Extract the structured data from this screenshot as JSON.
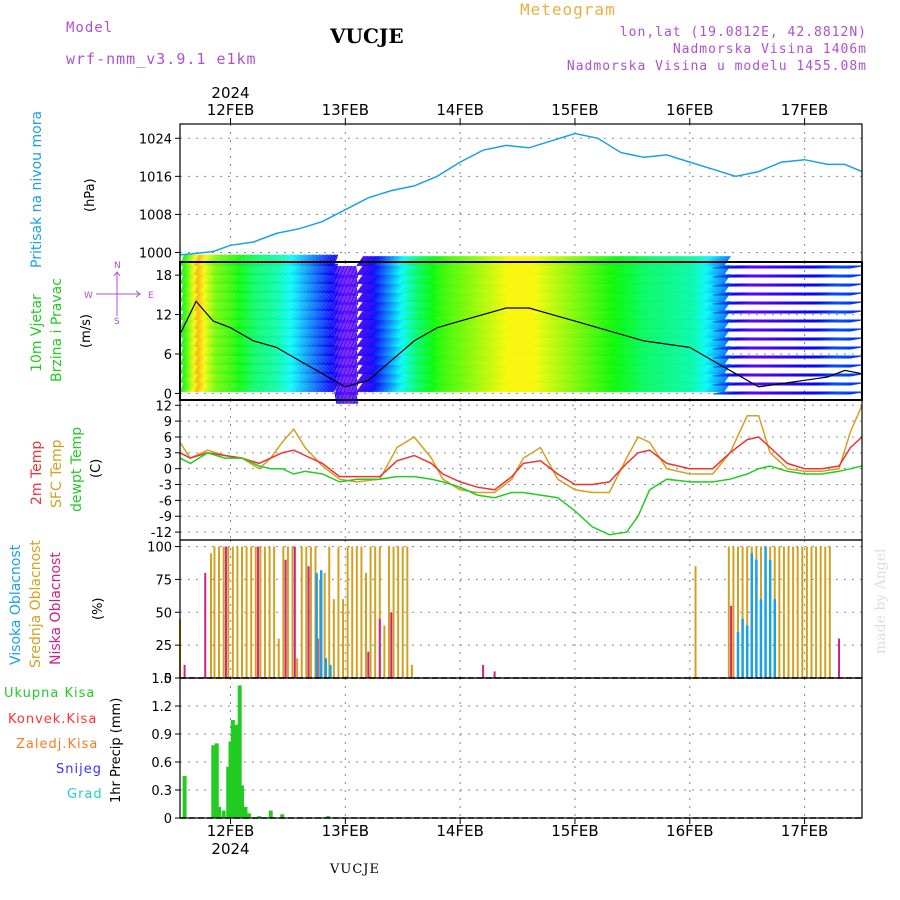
{
  "header": {
    "model_label": "Model",
    "model_name": "wrf-nmm_v3.9.1 e1km",
    "title": "Meteogram",
    "station": "VUCJE",
    "lonlat": "lon,lat (19.0812E, 42.8812N)",
    "elevation": "Nadmorska Visina 1406m",
    "model_elevation": "Nadmorska Visina u modelu 1455.08m",
    "footer_station": "VUCJE",
    "watermark": "made by Angel"
  },
  "time_axis": {
    "year": "2024",
    "labels": [
      "12FEB",
      "13FEB",
      "14FEB",
      "15FEB",
      "16FEB",
      "17FEB"
    ],
    "day_positions": [
      1,
      2,
      3,
      4,
      5,
      6
    ],
    "range": [
      0.56,
      6.5
    ]
  },
  "panels": {
    "pressure": {
      "label": "Pritisak na nivou mora",
      "unit": "(hPa)",
      "label_color": "#1aa0e8",
      "yticks": [
        "1000",
        "1008",
        "1016",
        "1024"
      ]
    },
    "wind": {
      "label1": "10m Vjetar",
      "label2": "Brzina i Pravac",
      "unit": "(m/s)",
      "label_color": "#22cc22",
      "compass": [
        "N",
        "E",
        "S",
        "W"
      ],
      "yticks": [
        "0",
        "6",
        "12",
        "18"
      ]
    },
    "temp": {
      "label_2m": "2m Temp",
      "label_sfc": "SFC Temp",
      "label_dew": "dewpt Temp",
      "unit": "(C)",
      "yticks": [
        "12",
        "9",
        "6",
        "3",
        "0",
        "-3",
        "-6",
        "-9",
        "-12"
      ]
    },
    "cloud": {
      "label_high": "Visoka Oblacnost",
      "label_mid": "Srednja Oblacnost",
      "label_low": "Niska Oblacnost",
      "unit": "(%)",
      "yticks": [
        "0",
        "25",
        "50",
        "75",
        "100"
      ]
    },
    "precip": {
      "label": "1hr Precip (mm)",
      "yticks": [
        "0",
        "0.3",
        "0.6",
        "0.9",
        "1.2",
        "1.5"
      ],
      "legend": [
        "Ukupna Kisa",
        "Konvek.Kisa",
        "Zaledj.Kisa",
        "Snijeg",
        "Grad"
      ],
      "legend_colors": [
        "#22cc22",
        "#ff3333",
        "#ff7722",
        "#3333ff",
        "#22cccc"
      ]
    }
  },
  "colors": {
    "pressure": "#1aa0e8",
    "t2m": "#ee3333",
    "tsfc": "#d4a020",
    "dewpt": "#22cc22",
    "high_cloud": "#1aa0e8",
    "mid_cloud": "#d4a020",
    "low_cloud": "#cc2288",
    "total_rain": "#22cc22",
    "grid": "#888888"
  },
  "chart_data": [
    {
      "type": "line",
      "title": "Pritisak na nivou mora",
      "ylabel": "(hPa)",
      "ylim": [
        998,
        1027
      ],
      "x": [
        0.56,
        0.7,
        0.85,
        1.0,
        1.2,
        1.4,
        1.6,
        1.8,
        2.0,
        2.2,
        2.4,
        2.6,
        2.8,
        3.0,
        3.2,
        3.4,
        3.6,
        3.8,
        4.0,
        4.2,
        4.4,
        4.6,
        4.8,
        5.0,
        5.2,
        5.4,
        5.6,
        5.8,
        6.0,
        6.2,
        6.35,
        6.5
      ],
      "series": [
        {
          "values": [
            999.5,
            999.8,
            1000.2,
            1001.5,
            1002.2,
            1004.0,
            1005.0,
            1006.5,
            1009.0,
            1011.5,
            1013.0,
            1014.0,
            1016.0,
            1019.0,
            1021.5,
            1022.5,
            1022.0,
            1023.5,
            1025.0,
            1024.0,
            1021.0,
            1020.0,
            1020.5,
            1019.0,
            1017.5,
            1016.0,
            1017.0,
            1019.0,
            1019.5,
            1018.5,
            1018.5,
            1017.0
          ]
        }
      ]
    },
    {
      "type": "line",
      "title": "10m Vjetar Brzina i Pravac",
      "ylabel": "(m/s)",
      "ylim": [
        -1,
        20
      ],
      "x": [
        0.56,
        0.7,
        0.85,
        1.0,
        1.2,
        1.4,
        1.6,
        1.8,
        2.0,
        2.2,
        2.4,
        2.6,
        2.8,
        3.0,
        3.2,
        3.4,
        3.6,
        3.8,
        4.0,
        4.2,
        4.4,
        4.6,
        4.8,
        5.0,
        5.2,
        5.4,
        5.6,
        5.8,
        6.0,
        6.2,
        6.35,
        6.5
      ],
      "series": [
        {
          "values": [
            9,
            14,
            11,
            10,
            8,
            7,
            5,
            3,
            1,
            2,
            5,
            8,
            10,
            11,
            12,
            13,
            13,
            12,
            11,
            10,
            9,
            8,
            7.5,
            7,
            5,
            3,
            1,
            1.5,
            2,
            2.5,
            3.5,
            3
          ]
        }
      ]
    },
    {
      "type": "line",
      "title": "2m Temp / SFC Temp / dewpt Temp",
      "ylabel": "(C)",
      "ylim": [
        -13.5,
        13
      ],
      "x": [
        0.56,
        0.65,
        0.8,
        0.95,
        1.1,
        1.25,
        1.35,
        1.45,
        1.55,
        1.65,
        1.8,
        1.95,
        2.1,
        2.3,
        2.45,
        2.6,
        2.75,
        2.85,
        3.0,
        3.15,
        3.3,
        3.45,
        3.55,
        3.7,
        3.85,
        4.0,
        4.15,
        4.3,
        4.45,
        4.55,
        4.65,
        4.8,
        5.0,
        5.2,
        5.35,
        5.5,
        5.6,
        5.7,
        5.85,
        6.0,
        6.15,
        6.3,
        6.4,
        6.5
      ],
      "series": [
        {
          "name": "2m Temp",
          "values": [
            3,
            2,
            3,
            2.5,
            2,
            1,
            2,
            3,
            3.5,
            2.5,
            1,
            -1.5,
            -1.5,
            -1.5,
            1.5,
            2.5,
            1,
            -1,
            -2.5,
            -3.5,
            -4,
            -1.5,
            1,
            1.5,
            -1,
            -3,
            -3,
            -2.5,
            1,
            3,
            3.5,
            1,
            0,
            0,
            3,
            5.5,
            6,
            4,
            1,
            0,
            0,
            0.5,
            4,
            6
          ]
        },
        {
          "name": "SFC Temp",
          "values": [
            5,
            2,
            3.5,
            2.5,
            2,
            0,
            2,
            5,
            7.5,
            4,
            0.5,
            -2,
            -2.5,
            -2,
            4,
            6,
            2,
            -2,
            -4,
            -4.5,
            -4.5,
            -2,
            2,
            4,
            -2,
            -4,
            -4.5,
            -4.5,
            2,
            6,
            5,
            0,
            -1,
            -1,
            3,
            10,
            10,
            3,
            0,
            -0.5,
            -0.5,
            0,
            7,
            12
          ]
        },
        {
          "name": "dewpt Temp",
          "values": [
            2,
            1,
            3,
            2,
            2,
            0.5,
            0,
            0,
            -1,
            -0.5,
            -1,
            -2.5,
            -2,
            -2,
            -1.5,
            -1.5,
            -2,
            -2.5,
            -3.5,
            -5,
            -5.5,
            -4.5,
            -4.5,
            -5,
            -5.5,
            -8,
            -11,
            -12.5,
            -12,
            -9,
            -4,
            -2,
            -2.5,
            -2.5,
            -2,
            -1,
            0,
            0.5,
            -0.5,
            -1,
            -1,
            -0.5,
            0,
            0.5
          ]
        }
      ]
    },
    {
      "type": "bar",
      "title": "Visoka / Srednja / Niska Oblacnost",
      "ylabel": "(%)",
      "ylim": [
        0,
        105
      ],
      "series": [
        {
          "name": "Srednja Oblacnost",
          "x": [
            0.56,
            0.83,
            0.86,
            0.9,
            0.94,
            0.98,
            1.02,
            1.06,
            1.1,
            1.14,
            1.18,
            1.22,
            1.26,
            1.3,
            1.34,
            1.38,
            1.42,
            1.46,
            1.5,
            1.54,
            1.58,
            1.62,
            1.66,
            1.7,
            1.74,
            1.78,
            1.82,
            1.86,
            1.9,
            1.94,
            1.98,
            2.02,
            2.06,
            2.1,
            2.14,
            2.18,
            2.22,
            2.26,
            2.3,
            2.34,
            2.38,
            2.42,
            2.46,
            2.5,
            2.54,
            2.58,
            5.05,
            5.34,
            5.38,
            5.42,
            5.46,
            5.5,
            5.54,
            5.58,
            5.62,
            5.66,
            5.7,
            5.74,
            5.78,
            5.82,
            5.86,
            5.9,
            5.94,
            5.98,
            6.02,
            6.06,
            6.1,
            6.14,
            6.18,
            6.22
          ],
          "values": [
            45,
            95,
            100,
            100,
            100,
            100,
            100,
            100,
            100,
            100,
            100,
            100,
            100,
            100,
            100,
            100,
            30,
            100,
            100,
            100,
            15,
            100,
            100,
            100,
            100,
            75,
            80,
            100,
            60,
            100,
            60,
            100,
            100,
            100,
            100,
            80,
            100,
            100,
            100,
            40,
            100,
            100,
            100,
            100,
            100,
            10,
            85,
            100,
            100,
            100,
            100,
            100,
            100,
            100,
            100,
            100,
            100,
            100,
            100,
            100,
            100,
            100,
            100,
            100,
            100,
            100,
            100,
            100,
            100,
            100
          ]
        },
        {
          "name": "Niska Oblacnost",
          "x": [
            0.6,
            0.78,
            0.96,
            1.24,
            1.48,
            1.56,
            1.68,
            1.76,
            2.2,
            2.3,
            2.4,
            3.2,
            3.3,
            5.36,
            6.3
          ],
          "values": [
            10,
            80,
            100,
            100,
            90,
            100,
            85,
            30,
            20,
            45,
            50,
            10,
            5,
            55,
            30
          ]
        },
        {
          "name": "Visoka Oblacnost",
          "x": [
            1.75,
            1.79,
            1.83,
            1.87,
            5.42,
            5.46,
            5.5,
            5.54,
            5.58,
            5.62,
            5.66,
            5.7,
            5.74
          ],
          "values": [
            80,
            82,
            15,
            10,
            35,
            45,
            40,
            95,
            90,
            60,
            100,
            90,
            60
          ]
        }
      ]
    },
    {
      "type": "bar",
      "title": "1hr Precip",
      "ylabel": "1hr Precip (mm)",
      "ylim": [
        0,
        1.5
      ],
      "series": [
        {
          "name": "Ukupna Kisa",
          "x": [
            0.6,
            0.85,
            0.88,
            0.9,
            0.94,
            0.98,
            1.0,
            1.02,
            1.05,
            1.08,
            1.1,
            1.13,
            1.16,
            1.25,
            1.35,
            1.45,
            1.85
          ],
          "values": [
            0.45,
            0.78,
            0.8,
            0.12,
            0.08,
            0.55,
            0.82,
            1.05,
            1.0,
            1.42,
            0.35,
            0.12,
            0.05,
            0.02,
            0.08,
            0.04,
            0.02
          ]
        }
      ]
    }
  ]
}
